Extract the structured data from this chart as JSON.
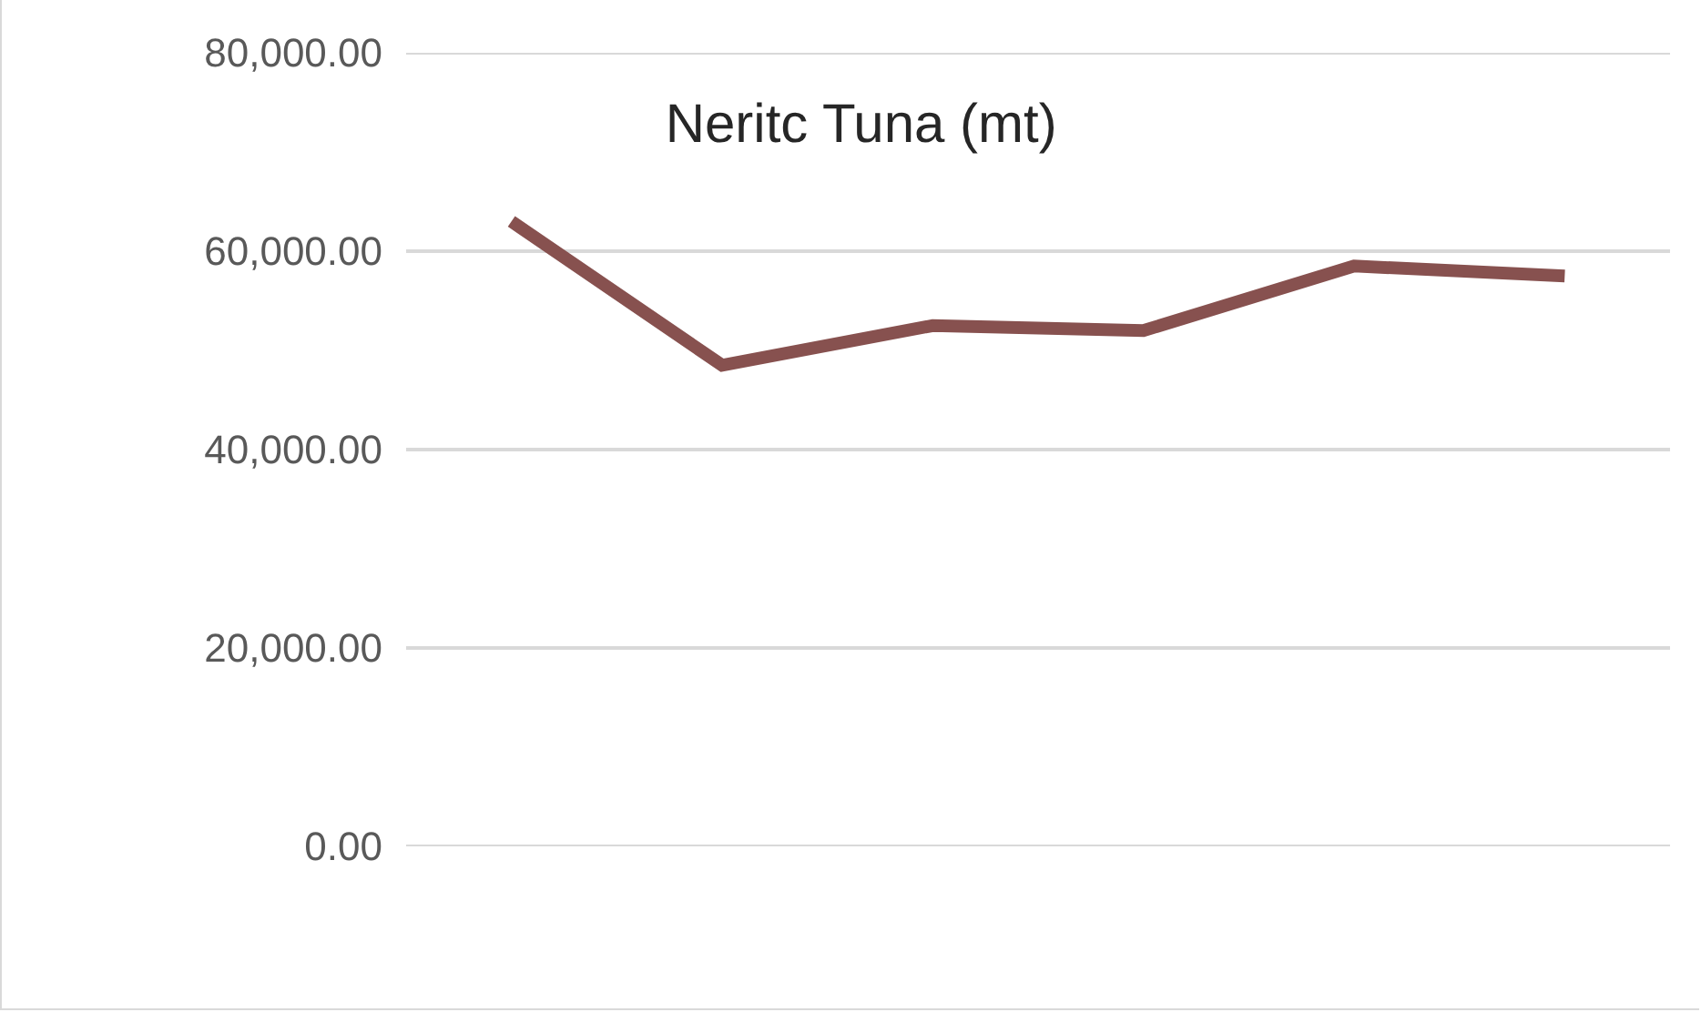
{
  "chart_data": {
    "type": "line",
    "title": "Neritc Tuna (mt)",
    "categories": [
      null,
      null,
      null,
      null,
      null,
      null
    ],
    "series": [
      {
        "color": "#87514f",
        "values": [
          63000,
          48500,
          52500,
          52000,
          58500,
          57500
        ]
      }
    ],
    "ylim": [
      0,
      80000
    ],
    "yticks": [
      {
        "value": 0,
        "label": "0.00"
      },
      {
        "value": 20000,
        "label": "20,000.00"
      },
      {
        "value": 40000,
        "label": "40,000.00"
      },
      {
        "value": 60000,
        "label": "60,000.00"
      },
      {
        "value": 80000,
        "label": "80,000.00"
      }
    ],
    "grid": "y",
    "marker": "none",
    "line_style": "solid"
  }
}
